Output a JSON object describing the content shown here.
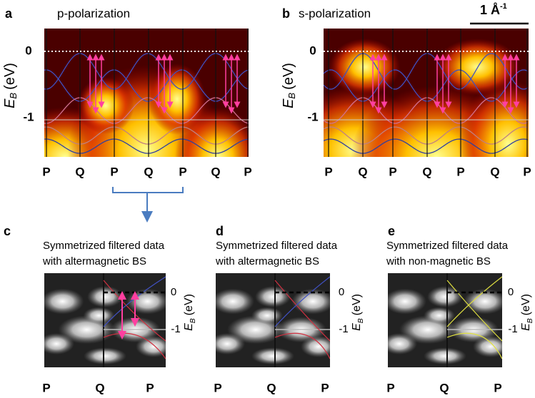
{
  "top_panels": [
    {
      "label": "a",
      "title": "p-polarization",
      "y_title": {
        "symbol": "E",
        "subscript": "B",
        "unit": "(eV)"
      },
      "y_ticks": [
        "0",
        "-1"
      ],
      "x_labels": [
        "P",
        "Q",
        "P",
        "Q",
        "P",
        "Q",
        "P"
      ]
    },
    {
      "label": "b",
      "title": "s-polarization",
      "y_title": {
        "symbol": "E",
        "subscript": "B",
        "unit": "(eV)"
      },
      "y_ticks": [
        "0",
        "-1"
      ],
      "x_labels": [
        "P",
        "Q",
        "P",
        "Q",
        "P",
        "Q",
        "P"
      ]
    }
  ],
  "scale_bar": {
    "text": "1 Å",
    "superscript": "-1"
  },
  "bottom_panels": [
    {
      "label": "c",
      "caption": [
        "Symmetrized filtered data",
        "with altermagnetic BS"
      ],
      "y_ticks": [
        "0",
        "-1"
      ],
      "y_title": {
        "symbol": "E",
        "subscript": "B",
        "unit": "(eV)"
      },
      "x_labels": [
        "P",
        "Q",
        "P"
      ]
    },
    {
      "label": "d",
      "caption": [
        "Symmetrized filtered data",
        "with altermagnetic BS"
      ],
      "y_ticks": [
        "0",
        "-1"
      ],
      "y_title": {
        "symbol": "E",
        "subscript": "B",
        "unit": "(eV)"
      },
      "x_labels": [
        "P",
        "Q",
        "P"
      ]
    },
    {
      "label": "e",
      "caption": [
        "Symmetrized filtered data",
        "with non-magnetic BS"
      ],
      "y_ticks": [
        "0",
        "-1"
      ],
      "y_title": {
        "symbol": "E",
        "subscript": "B",
        "unit": "(eV)"
      },
      "x_labels": [
        "P",
        "Q",
        "P"
      ]
    }
  ]
}
